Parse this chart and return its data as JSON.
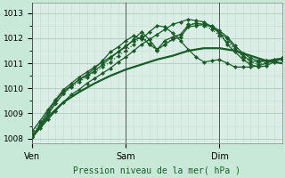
{
  "title": "",
  "xlabel": "Pression niveau de la mer( hPa )",
  "ylabel": "",
  "bg_color": "#c8e8d8",
  "plot_bg_color": "#daeee6",
  "grid_color_major": "#b0ccbe",
  "grid_color_minor": "#c4ddd4",
  "line_color": "#1a5c28",
  "ylim": [
    1007.8,
    1013.4
  ],
  "xlim": [
    0,
    96
  ],
  "yticks": [
    1008,
    1009,
    1010,
    1011,
    1012,
    1013
  ],
  "xtick_positions": [
    0,
    36,
    72
  ],
  "xtick_labels": [
    "Ven",
    "Sam",
    "Dim"
  ],
  "vline_positions": [
    0,
    36,
    72
  ],
  "series": [
    {
      "x": [
        0,
        3,
        6,
        9,
        12,
        15,
        18,
        21,
        24,
        27,
        30,
        33,
        36,
        39,
        42,
        45,
        48,
        51,
        54,
        57,
        60,
        63,
        66,
        69,
        72,
        75,
        78,
        81,
        84,
        87,
        90,
        93,
        96
      ],
      "y": [
        1008.05,
        1008.4,
        1008.75,
        1009.1,
        1009.45,
        1009.75,
        1009.95,
        1010.2,
        1010.4,
        1010.6,
        1010.8,
        1011.05,
        1011.25,
        1011.5,
        1011.75,
        1011.95,
        1012.15,
        1012.35,
        1012.55,
        1012.65,
        1012.75,
        1012.7,
        1012.65,
        1012.45,
        1012.25,
        1011.75,
        1011.45,
        1011.15,
        1010.95,
        1010.85,
        1010.9,
        1011.05,
        1011.2
      ],
      "style": "-",
      "linewidth": 0.9,
      "marker": "D",
      "markersize": 2.2
    },
    {
      "x": [
        0,
        3,
        6,
        9,
        12,
        15,
        18,
        21,
        24,
        27,
        30,
        33,
        36,
        39,
        42,
        45,
        48,
        51,
        54,
        57,
        60,
        63,
        66,
        69,
        72,
        75,
        78,
        81,
        84,
        87,
        90,
        93,
        96
      ],
      "y": [
        1008.1,
        1008.55,
        1009.05,
        1009.5,
        1009.9,
        1010.1,
        1010.35,
        1010.5,
        1010.7,
        1010.95,
        1011.2,
        1011.45,
        1011.65,
        1011.95,
        1012.25,
        1011.95,
        1011.55,
        1011.9,
        1012.05,
        1012.15,
        1012.5,
        1012.6,
        1012.55,
        1012.45,
        1012.2,
        1012.0,
        1011.6,
        1011.3,
        1011.1,
        1011.05,
        1011.1,
        1011.15,
        1011.2
      ],
      "style": "-",
      "linewidth": 0.9,
      "marker": "D",
      "markersize": 2.2
    },
    {
      "x": [
        0,
        3,
        6,
        9,
        12,
        15,
        18,
        21,
        24,
        27,
        30,
        33,
        36,
        39,
        42,
        45,
        48,
        51,
        54,
        57,
        60,
        63,
        66,
        69,
        72,
        75,
        78,
        81,
        84,
        87,
        90,
        93,
        96
      ],
      "y": [
        1008.3,
        1008.7,
        1009.15,
        1009.55,
        1009.95,
        1010.2,
        1010.45,
        1010.65,
        1010.85,
        1011.05,
        1011.25,
        1011.45,
        1011.7,
        1011.9,
        1012.05,
        1011.75,
        1011.55,
        1011.75,
        1011.95,
        1012.05,
        1012.45,
        1012.5,
        1012.55,
        1012.5,
        1012.3,
        1012.05,
        1011.7,
        1011.4,
        1011.2,
        1011.1,
        1011.1,
        1011.15,
        1011.2
      ],
      "style": "-",
      "linewidth": 0.9,
      "marker": "D",
      "markersize": 2.2
    },
    {
      "x": [
        0,
        3,
        6,
        9,
        12,
        15,
        18,
        21,
        24,
        27,
        30,
        33,
        36,
        39,
        42,
        45,
        48,
        51,
        54,
        57,
        60,
        63,
        66,
        69,
        72,
        75,
        78,
        81,
        84,
        87,
        90,
        93,
        96
      ],
      "y": [
        1008.2,
        1008.65,
        1009.05,
        1009.4,
        1009.8,
        1010.05,
        1010.25,
        1010.45,
        1010.65,
        1010.85,
        1011.05,
        1011.3,
        1011.5,
        1011.75,
        1012.1,
        1011.8,
        1011.5,
        1011.75,
        1012.0,
        1012.15,
        1012.55,
        1012.6,
        1012.5,
        1012.35,
        1012.1,
        1011.85,
        1011.55,
        1011.25,
        1011.05,
        1010.95,
        1011.05,
        1011.1,
        1011.15
      ],
      "style": ":",
      "linewidth": 0.9,
      "marker": "D",
      "markersize": 2.2
    },
    {
      "x": [
        0,
        3,
        6,
        9,
        12,
        15,
        18,
        21,
        24,
        27,
        30,
        33,
        36,
        39,
        42,
        45,
        48,
        51,
        54,
        57,
        60,
        63,
        66,
        69,
        72,
        75,
        78,
        81,
        84,
        87,
        90,
        93,
        96
      ],
      "y": [
        1008.05,
        1008.5,
        1008.95,
        1009.4,
        1009.8,
        1010.1,
        1010.35,
        1010.55,
        1010.8,
        1011.1,
        1011.45,
        1011.65,
        1011.9,
        1012.1,
        1011.95,
        1012.25,
        1012.5,
        1012.45,
        1012.2,
        1011.9,
        1011.55,
        1011.25,
        1011.05,
        1011.1,
        1011.15,
        1011.0,
        1010.85,
        1010.85,
        1010.85,
        1010.9,
        1011.0,
        1011.1,
        1011.15
      ],
      "style": "-",
      "linewidth": 0.9,
      "marker": "D",
      "markersize": 2.2
    },
    {
      "x": [
        0,
        6,
        12,
        18,
        24,
        30,
        36,
        42,
        48,
        54,
        60,
        66,
        72,
        78,
        84,
        90,
        96
      ],
      "y": [
        1008.05,
        1008.85,
        1009.45,
        1009.85,
        1010.2,
        1010.5,
        1010.75,
        1010.95,
        1011.15,
        1011.3,
        1011.5,
        1011.6,
        1011.6,
        1011.5,
        1011.3,
        1011.1,
        1011.0
      ],
      "style": "-",
      "linewidth": 1.6,
      "marker": null,
      "markersize": 0
    }
  ]
}
